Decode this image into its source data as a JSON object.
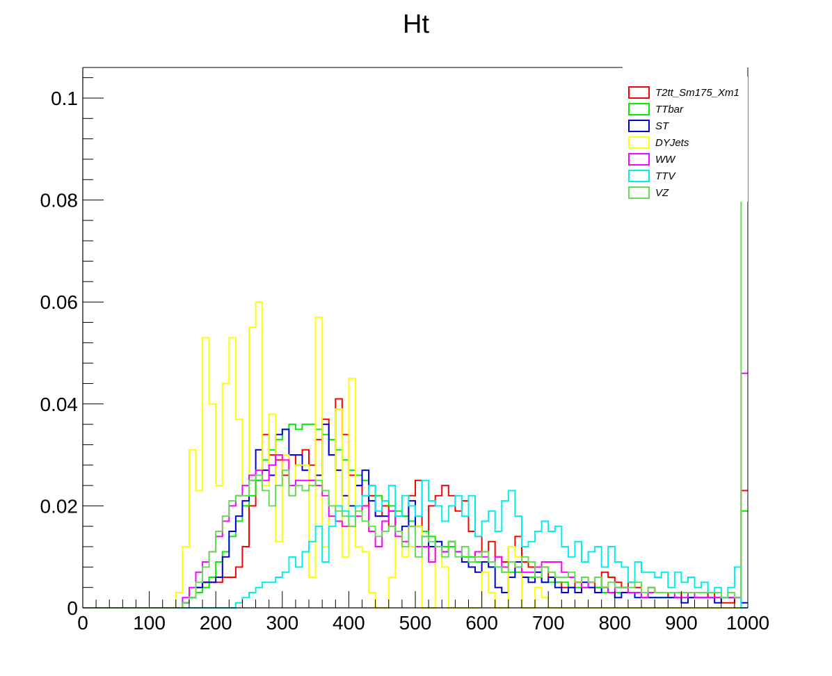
{
  "chart_data": {
    "type": "histogram",
    "title": "Ht",
    "xlabel": "",
    "ylabel": "",
    "xlim": [
      0,
      1000
    ],
    "ylim": [
      0,
      0.106
    ],
    "bin_width": 10,
    "x_ticks": [
      0,
      100,
      200,
      300,
      400,
      500,
      600,
      700,
      800,
      900,
      1000
    ],
    "x_tick_labels": [
      "0",
      "100",
      "200",
      "300",
      "400",
      "500",
      "600",
      "700",
      "800",
      "900",
      "1000"
    ],
    "y_ticks": [
      0,
      0.02,
      0.04,
      0.06,
      0.08,
      0.1
    ],
    "y_tick_labels": [
      "0",
      "0.02",
      "0.04",
      "0.06",
      "0.08",
      "0.1"
    ],
    "grid": false,
    "legend_position": "top-right",
    "series": [
      {
        "name": "T2tt_Sm175_Xm1",
        "color": "#ff0000",
        "x_start": 140,
        "values": [
          0.0,
          0.001,
          0.002,
          0.004,
          0.005,
          0.005,
          0.005,
          0.006,
          0.006,
          0.008,
          0.012,
          0.02,
          0.025,
          0.034,
          0.03,
          0.029,
          0.026,
          0.03,
          0.028,
          0.031,
          0.028,
          0.033,
          0.037,
          0.03,
          0.041,
          0.034,
          0.026,
          0.024,
          0.02,
          0.022,
          0.018,
          0.02,
          0.016,
          0.018,
          0.018,
          0.022,
          0.025,
          0.015,
          0.02,
          0.022,
          0.024,
          0.022,
          0.019,
          0.021,
          0.015,
          0.014,
          0.011,
          0.013,
          0.01,
          0.009,
          0.012,
          0.014,
          0.009,
          0.008,
          0.007,
          0.008,
          0.006,
          0.005,
          0.004,
          0.004,
          0.005,
          0.006,
          0.005,
          0.004,
          0.007,
          0.006,
          0.005,
          0.004,
          0.005,
          0.004,
          0.003,
          0.004,
          0.003,
          0.003,
          0.002,
          0.002,
          0.003,
          0.002,
          0.002,
          0.002,
          0.003,
          0.002,
          0.001,
          0.001,
          0.002,
          0.023
        ]
      },
      {
        "name": "TTbar",
        "color": "#00ee00",
        "x_start": 140,
        "values": [
          0.0,
          0.001,
          0.002,
          0.003,
          0.004,
          0.006,
          0.009,
          0.011,
          0.014,
          0.017,
          0.02,
          0.022,
          0.025,
          0.029,
          0.031,
          0.033,
          0.035,
          0.036,
          0.035,
          0.036,
          0.036,
          0.035,
          0.034,
          0.033,
          0.031,
          0.029,
          0.027,
          0.026,
          0.025,
          0.024,
          0.022,
          0.021,
          0.02,
          0.019,
          0.018,
          0.017,
          0.016,
          0.015,
          0.014,
          0.013,
          0.012,
          0.012,
          0.011,
          0.01,
          0.01,
          0.009,
          0.009,
          0.008,
          0.008,
          0.007,
          0.007,
          0.007,
          0.006,
          0.006,
          0.006,
          0.005,
          0.005,
          0.005,
          0.005,
          0.004,
          0.004,
          0.004,
          0.004,
          0.004,
          0.003,
          0.003,
          0.003,
          0.003,
          0.003,
          0.003,
          0.003,
          0.002,
          0.002,
          0.002,
          0.002,
          0.002,
          0.002,
          0.002,
          0.002,
          0.002,
          0.002,
          0.002,
          0.002,
          0.002,
          0.002,
          0.019
        ]
      },
      {
        "name": "ST",
        "color": "#0000dd",
        "x_start": 140,
        "values": [
          0.0,
          0.001,
          0.002,
          0.004,
          0.005,
          0.005,
          0.006,
          0.01,
          0.015,
          0.018,
          0.021,
          0.025,
          0.031,
          0.027,
          0.026,
          0.034,
          0.035,
          0.03,
          0.03,
          0.027,
          0.025,
          0.026,
          0.036,
          0.03,
          0.027,
          0.022,
          0.02,
          0.024,
          0.027,
          0.021,
          0.018,
          0.018,
          0.019,
          0.015,
          0.016,
          0.021,
          0.016,
          0.014,
          0.012,
          0.013,
          0.011,
          0.013,
          0.011,
          0.009,
          0.008,
          0.007,
          0.009,
          0.008,
          0.004,
          0.003,
          0.006,
          0.009,
          0.006,
          0.005,
          0.007,
          0.005,
          0.006,
          0.004,
          0.003,
          0.004,
          0.003,
          0.005,
          0.004,
          0.003,
          0.004,
          0.003,
          0.002,
          0.003,
          0.003,
          0.002,
          0.002,
          0.002,
          0.002,
          0.002,
          0.002,
          0.002,
          0.001,
          0.002,
          0.002,
          0.002,
          0.002,
          0.001,
          0.002,
          0.002,
          0.002,
          0.001
        ]
      },
      {
        "name": "DYJets",
        "color": "#ffff00",
        "x_start": 140,
        "values": [
          0.003,
          0.012,
          0.031,
          0.023,
          0.053,
          0.04,
          0.024,
          0.044,
          0.053,
          0.037,
          0.022,
          0.055,
          0.06,
          0.024,
          0.038,
          0.013,
          0.03,
          0.022,
          0.028,
          0.028,
          0.006,
          0.057,
          0.012,
          0.02,
          0.039,
          0.01,
          0.045,
          0.012,
          0.011,
          0.003,
          0.0,
          0.0,
          0.006,
          0.015,
          0.01,
          0.012,
          0.016,
          0.0,
          0.0,
          0.012,
          0.008,
          0.0,
          0.0,
          0.0,
          0.0,
          0.0,
          0.007,
          0.003,
          0.0,
          0.0,
          0.012,
          0.01,
          0.0,
          0.0,
          0.004,
          0.002,
          0.0,
          0.0,
          0.0,
          0.0,
          0.0,
          0.0,
          0.0,
          0.0,
          0.0,
          0.0,
          0.0,
          0.0,
          0.0,
          0.0,
          0.0,
          0.0,
          0.0,
          0.0,
          0.0,
          0.0,
          0.0,
          0.0,
          0.0,
          0.0,
          0.0,
          0.0,
          0.0,
          0.0,
          0.0,
          0.0
        ]
      },
      {
        "name": "WW",
        "color": "#ff00ff",
        "x_start": 140,
        "values": [
          0.0,
          0.002,
          0.004,
          0.007,
          0.009,
          0.011,
          0.014,
          0.017,
          0.02,
          0.022,
          0.024,
          0.026,
          0.027,
          0.025,
          0.028,
          0.03,
          0.029,
          0.024,
          0.025,
          0.025,
          0.025,
          0.024,
          0.022,
          0.018,
          0.017,
          0.016,
          0.016,
          0.018,
          0.02,
          0.015,
          0.012,
          0.017,
          0.019,
          0.014,
          0.013,
          0.016,
          0.012,
          0.012,
          0.009,
          0.012,
          0.011,
          0.013,
          0.011,
          0.012,
          0.009,
          0.011,
          0.01,
          0.009,
          0.01,
          0.008,
          0.009,
          0.008,
          0.007,
          0.007,
          0.008,
          0.009,
          0.009,
          0.009,
          0.007,
          0.006,
          0.005,
          0.004,
          0.005,
          0.006,
          0.004,
          0.003,
          0.004,
          0.004,
          0.003,
          0.003,
          0.002,
          0.003,
          0.003,
          0.003,
          0.003,
          0.002,
          0.002,
          0.003,
          0.002,
          0.002,
          0.002,
          0.002,
          0.002,
          0.002,
          0.002,
          0.046
        ]
      },
      {
        "name": "TTV",
        "color": "#00eeee",
        "x_start": 140,
        "values": [
          0.0,
          0.0,
          0.0,
          0.0,
          0.0,
          0.0,
          0.0,
          0.0,
          0.0,
          0.001,
          0.002,
          0.003,
          0.004,
          0.005,
          0.005,
          0.006,
          0.007,
          0.01,
          0.008,
          0.011,
          0.013,
          0.016,
          0.009,
          0.016,
          0.02,
          0.019,
          0.018,
          0.02,
          0.022,
          0.024,
          0.019,
          0.021,
          0.024,
          0.018,
          0.022,
          0.02,
          0.018,
          0.025,
          0.021,
          0.02,
          0.017,
          0.02,
          0.022,
          0.018,
          0.022,
          0.014,
          0.017,
          0.019,
          0.015,
          0.021,
          0.023,
          0.018,
          0.012,
          0.013,
          0.015,
          0.017,
          0.015,
          0.016,
          0.012,
          0.01,
          0.013,
          0.009,
          0.011,
          0.012,
          0.008,
          0.012,
          0.009,
          0.008,
          0.005,
          0.009,
          0.007,
          0.007,
          0.006,
          0.007,
          0.004,
          0.007,
          0.005,
          0.006,
          0.004,
          0.005,
          0.003,
          0.004,
          0.002,
          0.004,
          0.008,
          0.0
        ]
      },
      {
        "name": "VZ",
        "color": "#66dd55",
        "x_start": 140,
        "values": [
          0.0,
          0.001,
          0.002,
          0.005,
          0.008,
          0.011,
          0.015,
          0.018,
          0.021,
          0.022,
          0.022,
          0.025,
          0.026,
          0.023,
          0.02,
          0.024,
          0.027,
          0.022,
          0.024,
          0.023,
          0.024,
          0.025,
          0.023,
          0.02,
          0.019,
          0.018,
          0.016,
          0.019,
          0.017,
          0.016,
          0.014,
          0.015,
          0.016,
          0.015,
          0.012,
          0.016,
          0.01,
          0.014,
          0.013,
          0.012,
          0.01,
          0.013,
          0.01,
          0.012,
          0.009,
          0.01,
          0.011,
          0.009,
          0.008,
          0.007,
          0.009,
          0.008,
          0.01,
          0.009,
          0.006,
          0.008,
          0.007,
          0.006,
          0.006,
          0.007,
          0.005,
          0.006,
          0.005,
          0.006,
          0.004,
          0.005,
          0.004,
          0.004,
          0.004,
          0.005,
          0.003,
          0.004,
          0.003,
          0.003,
          0.003,
          0.003,
          0.003,
          0.003,
          0.003,
          0.003,
          0.003,
          0.003,
          0.002,
          0.003,
          0.002,
          0.08
        ]
      }
    ]
  }
}
